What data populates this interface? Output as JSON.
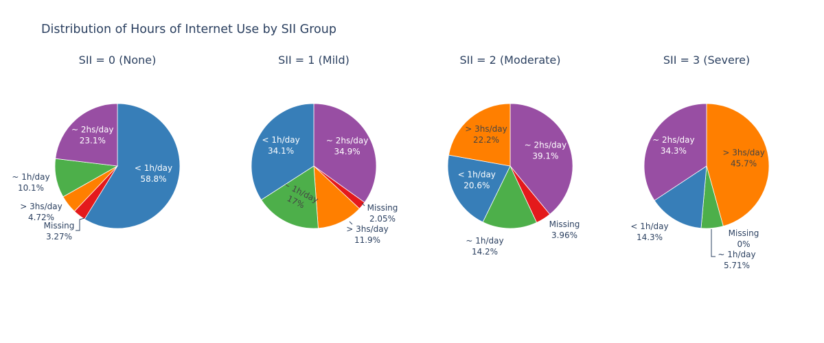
{
  "chart_data": {
    "type": "pie",
    "title": "Distribution of Hours of Internet Use by SII Group",
    "colors": {
      "< 1h/day": "#377eb8",
      "~ 1h/day": "#4daf4a",
      "> 3hs/day": "#ff7f00",
      "Missing": "#e41a1c",
      "~ 2hs/day": "#984ea3"
    },
    "text_colors": {
      "inside": "#ffffff",
      "outside": "#2a3f5f",
      "inside_dark": "#444444"
    },
    "pies": [
      {
        "title": "SII = 0 (None)",
        "slices": [
          {
            "label": "< 1h/day",
            "value": 58.8,
            "pct": "58.8%"
          },
          {
            "label": "Missing",
            "value": 3.27,
            "pct": "3.27%"
          },
          {
            "label": "> 3hs/day",
            "value": 4.72,
            "pct": "4.72%"
          },
          {
            "label": "~ 1h/day",
            "value": 10.1,
            "pct": "10.1%"
          },
          {
            "label": "~ 2hs/day",
            "value": 23.1,
            "pct": "23.1%"
          }
        ]
      },
      {
        "title": "SII = 1 (Mild)",
        "slices": [
          {
            "label": "~ 2hs/day",
            "value": 34.9,
            "pct": "34.9%"
          },
          {
            "label": "Missing",
            "value": 2.05,
            "pct": "2.05%"
          },
          {
            "label": "> 3hs/day",
            "value": 11.9,
            "pct": "11.9%"
          },
          {
            "label": "~ 1h/day",
            "value": 17.0,
            "pct": "17%"
          },
          {
            "label": "< 1h/day",
            "value": 34.1,
            "pct": "34.1%"
          }
        ]
      },
      {
        "title": "SII = 2 (Moderate)",
        "slices": [
          {
            "label": "~ 2hs/day",
            "value": 39.1,
            "pct": "39.1%"
          },
          {
            "label": "Missing",
            "value": 3.96,
            "pct": "3.96%"
          },
          {
            "label": "~ 1h/day",
            "value": 14.2,
            "pct": "14.2%"
          },
          {
            "label": "< 1h/day",
            "value": 20.6,
            "pct": "20.6%"
          },
          {
            "label": "> 3hs/day",
            "value": 22.2,
            "pct": "22.2%"
          }
        ]
      },
      {
        "title": "SII = 3 (Severe)",
        "slices": [
          {
            "label": "> 3hs/day",
            "value": 45.7,
            "pct": "45.7%"
          },
          {
            "label": "Missing",
            "value": 0,
            "pct": "0%"
          },
          {
            "label": "~ 1h/day",
            "value": 5.71,
            "pct": "5.71%"
          },
          {
            "label": "< 1h/day",
            "value": 14.3,
            "pct": "14.3%"
          },
          {
            "label": "~ 2hs/day",
            "value": 34.3,
            "pct": "34.3%"
          }
        ]
      }
    ]
  }
}
